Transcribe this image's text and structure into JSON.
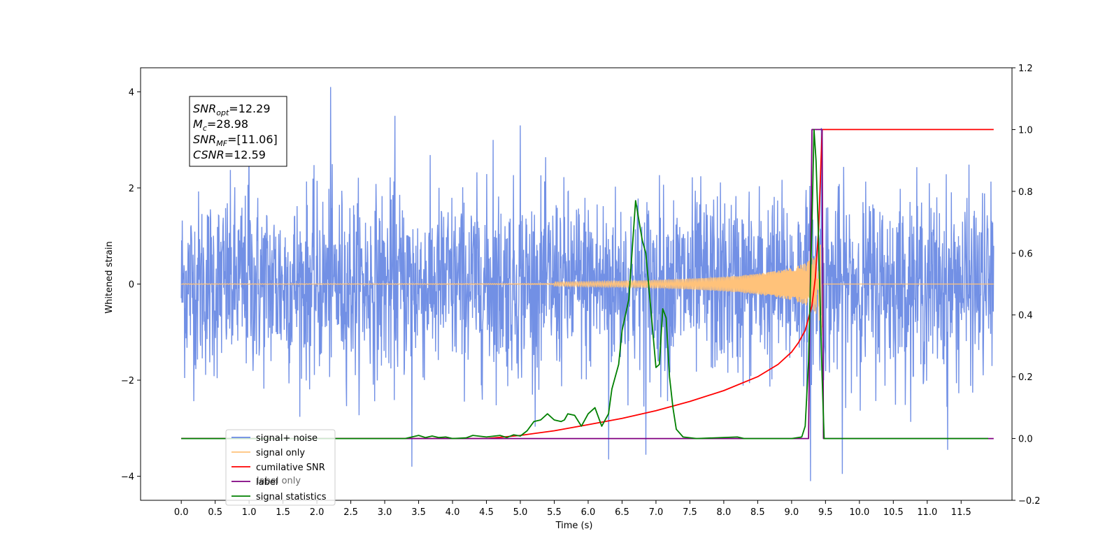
{
  "chart_data": {
    "type": "line",
    "title": "",
    "xlabel": "Time (s)",
    "ylabel": "Whitened strain",
    "xlim": [
      -0.6,
      12.25
    ],
    "ylim": [
      -4.5,
      4.5
    ],
    "y2lim": [
      -0.2,
      1.2
    ],
    "xticks": [
      0.0,
      0.5,
      1.0,
      1.5,
      2.0,
      2.5,
      3.0,
      3.5,
      4.0,
      4.5,
      5.0,
      5.5,
      6.0,
      6.5,
      7.0,
      7.5,
      8.0,
      8.5,
      9.0,
      9.5,
      10.0,
      10.5,
      11.0,
      11.5
    ],
    "xtick_labels": [
      "0.0",
      "0.5",
      "1.0",
      "1.5",
      "2.0",
      "2.5",
      "3.0",
      "3.5",
      "4.0",
      "4.5",
      "5.0",
      "5.5",
      "6.0",
      "6.5",
      "7.0",
      "7.5",
      "8.0",
      "8.5",
      "9.0",
      "9.5",
      "10.0",
      "10.5",
      "11.0",
      "11.5"
    ],
    "yticks": [
      -4,
      -2,
      0,
      2,
      4
    ],
    "ytick_labels": [
      "−4",
      "−2",
      "0",
      "2",
      "4"
    ],
    "y2ticks": [
      -0.2,
      0.0,
      0.2,
      0.4,
      0.6,
      0.8,
      1.0,
      1.2
    ],
    "y2tick_labels": [
      "−0.2",
      "0.0",
      "0.2",
      "0.4",
      "0.6",
      "0.8",
      "1.0",
      "1.2"
    ],
    "grid": false,
    "legend_position": "lower-left",
    "series": [
      {
        "name": "signal+ noise",
        "axis": "left",
        "color": "#6a8ae4",
        "description_kind": "noise",
        "x_range": [
          0.0,
          11.98
        ],
        "amplitude": 1.6,
        "spikes": [
          [
            2.2,
            4.1
          ],
          [
            3.4,
            -3.8
          ],
          [
            9.28,
            -4.1
          ],
          [
            9.44,
            3.25
          ],
          [
            9.75,
            -3.95
          ],
          [
            6.3,
            -3.65
          ],
          [
            6.85,
            -3.55
          ],
          [
            11.3,
            -3.45
          ],
          [
            5.0,
            3.3
          ],
          [
            4.6,
            3.0
          ],
          [
            1.0,
            3.0
          ],
          [
            3.15,
            3.5
          ]
        ]
      },
      {
        "name": "signal only",
        "axis": "left",
        "color": "#ffc27a",
        "description_kind": "chirp",
        "x_range": [
          0.0,
          11.98
        ],
        "merger_time": 9.45
      },
      {
        "name": "cumilative SNR",
        "axis": "right",
        "color": "#ff0000",
        "x": [
          0.0,
          4.5,
          5.0,
          5.5,
          6.0,
          6.5,
          7.0,
          7.5,
          8.0,
          8.5,
          8.8,
          9.0,
          9.1,
          9.2,
          9.3,
          9.35,
          9.4,
          9.43,
          9.45,
          10.0,
          11.0,
          11.98
        ],
        "y": [
          0.0,
          0.0,
          0.01,
          0.025,
          0.045,
          0.065,
          0.09,
          0.12,
          0.155,
          0.2,
          0.24,
          0.28,
          0.31,
          0.35,
          0.43,
          0.52,
          0.68,
          0.88,
          1.0,
          1.0,
          1.0,
          1.0
        ]
      },
      {
        "name": "label",
        "axis": "right",
        "color": "#800080",
        "x": [
          0.0,
          9.25,
          9.3,
          9.45,
          9.47,
          11.98
        ],
        "y": [
          0.0,
          0.0,
          1.0,
          1.0,
          0.0,
          0.0
        ]
      },
      {
        "name": "signal statistics",
        "axis": "right",
        "color": "#008000",
        "x": [
          0.0,
          3.3,
          3.4,
          3.5,
          3.6,
          3.7,
          3.8,
          3.9,
          4.0,
          4.2,
          4.3,
          4.5,
          4.7,
          4.8,
          4.9,
          5.0,
          5.1,
          5.2,
          5.3,
          5.4,
          5.5,
          5.6,
          5.65,
          5.7,
          5.8,
          5.9,
          6.0,
          6.1,
          6.2,
          6.3,
          6.35,
          6.45,
          6.5,
          6.6,
          6.7,
          6.8,
          6.85,
          6.9,
          7.0,
          7.05,
          7.1,
          7.15,
          7.2,
          7.25,
          7.3,
          7.4,
          7.6,
          8.2,
          8.3,
          8.5,
          9.0,
          9.15,
          9.2,
          9.25,
          9.3,
          9.33,
          9.36,
          9.39,
          9.42,
          9.45,
          9.48,
          11.9
        ],
        "y": [
          0.0,
          0.0,
          0.005,
          0.01,
          0.003,
          0.008,
          0.003,
          0.005,
          0.0,
          0.002,
          0.01,
          0.005,
          0.01,
          0.003,
          0.012,
          0.008,
          0.025,
          0.055,
          0.06,
          0.08,
          0.06,
          0.055,
          0.06,
          0.08,
          0.075,
          0.04,
          0.08,
          0.1,
          0.04,
          0.08,
          0.16,
          0.24,
          0.35,
          0.45,
          0.77,
          0.64,
          0.6,
          0.48,
          0.23,
          0.24,
          0.42,
          0.39,
          0.2,
          0.1,
          0.03,
          0.005,
          0.0,
          0.005,
          0.0,
          0.0,
          0.0,
          0.005,
          0.04,
          0.25,
          0.7,
          1.0,
          0.9,
          0.7,
          0.45,
          0.2,
          0.0,
          0.0
        ]
      }
    ],
    "legend": [
      "signal+ noise",
      "signal only",
      "cumilative SNR",
      "label",
      "signal statistics"
    ],
    "legend_background_fragments": [
      "signal only",
      "label only"
    ],
    "annotation": {
      "lines": [
        {
          "base": "SNR",
          "sub": "opt",
          "value": "=12.29"
        },
        {
          "base": "M",
          "sub": "c",
          "value": "=28.98"
        },
        {
          "base": "SNR",
          "sub": "MF",
          "value": "=[11.06]"
        },
        {
          "base": "CSNR",
          "sub": "",
          "value": "=12.59"
        }
      ]
    }
  }
}
